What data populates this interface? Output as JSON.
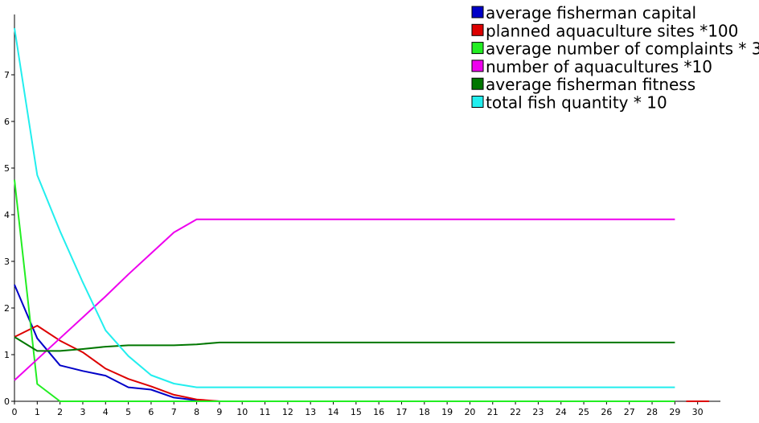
{
  "chart_data": {
    "type": "line",
    "title": "",
    "xlabel": "",
    "ylabel": "",
    "x": [
      0,
      1,
      2,
      3,
      4,
      5,
      6,
      7,
      8,
      9,
      10,
      11,
      12,
      13,
      14,
      15,
      16,
      17,
      18,
      19,
      20,
      21,
      22,
      23,
      24,
      25,
      26,
      27,
      28,
      29
    ],
    "x_ticks": [
      0,
      1,
      2,
      3,
      4,
      5,
      6,
      7,
      8,
      9,
      10,
      11,
      12,
      13,
      14,
      15,
      16,
      17,
      18,
      19,
      20,
      21,
      22,
      23,
      24,
      25,
      26,
      27,
      28,
      29,
      30
    ],
    "y_ticks": [
      0,
      1,
      2,
      3,
      4,
      5,
      6,
      7
    ],
    "xlim": [
      0,
      31
    ],
    "ylim": [
      0,
      8
    ],
    "grid": false,
    "legend_position": "top-right",
    "series": [
      {
        "name": "average fisherman capital",
        "color": "#0000c8",
        "values": [
          2.5,
          1.35,
          0.77,
          0.65,
          0.55,
          0.3,
          0.25,
          0.08,
          0.02,
          0,
          0,
          0,
          0,
          0,
          0,
          0,
          0,
          0,
          0,
          0,
          0,
          0,
          0,
          0,
          0,
          0,
          0,
          0,
          0,
          0
        ]
      },
      {
        "name": "planned aquaculture sites *100",
        "color": "#dd0000",
        "values": [
          1.38,
          1.62,
          1.3,
          1.05,
          0.7,
          0.48,
          0.32,
          0.14,
          0.04,
          0,
          0,
          0,
          0,
          0,
          0,
          0,
          0,
          0,
          0,
          0,
          0,
          0,
          0,
          0,
          0,
          0,
          0,
          0,
          0,
          0
        ],
        "extra_segment": [
          [
            29.5,
            0
          ],
          [
            30.5,
            0
          ]
        ]
      },
      {
        "name": "average number of complaints * 3",
        "color": "#22ee22",
        "values": [
          4.75,
          0.37,
          0,
          0,
          0,
          0,
          0,
          0,
          0,
          0,
          0,
          0,
          0,
          0,
          0,
          0,
          0,
          0,
          0,
          0,
          0,
          0,
          0,
          0,
          0,
          0,
          0,
          0,
          0,
          0
        ]
      },
      {
        "name": "number of aquacultures *10",
        "color": "#ee00ee",
        "values": [
          0.45,
          0.9,
          1.35,
          1.8,
          2.25,
          2.72,
          3.17,
          3.62,
          3.9,
          3.9,
          3.9,
          3.9,
          3.9,
          3.9,
          3.9,
          3.9,
          3.9,
          3.9,
          3.9,
          3.9,
          3.9,
          3.9,
          3.9,
          3.9,
          3.9,
          3.9,
          3.9,
          3.9,
          3.9,
          3.9
        ]
      },
      {
        "name": "average fisherman fitness",
        "color": "#007700",
        "values": [
          1.38,
          1.08,
          1.08,
          1.12,
          1.17,
          1.2,
          1.2,
          1.2,
          1.22,
          1.26,
          1.26,
          1.26,
          1.26,
          1.26,
          1.26,
          1.26,
          1.26,
          1.26,
          1.26,
          1.26,
          1.26,
          1.26,
          1.26,
          1.26,
          1.26,
          1.26,
          1.26,
          1.26,
          1.26,
          1.26
        ]
      },
      {
        "name": "total fish quantity * 10",
        "color": "#22eeee",
        "values": [
          8.0,
          4.85,
          3.65,
          2.55,
          1.52,
          0.97,
          0.56,
          0.38,
          0.3,
          0.3,
          0.3,
          0.3,
          0.3,
          0.3,
          0.3,
          0.3,
          0.3,
          0.3,
          0.3,
          0.3,
          0.3,
          0.3,
          0.3,
          0.3,
          0.3,
          0.3,
          0.3,
          0.3,
          0.3,
          0.3
        ]
      }
    ]
  }
}
